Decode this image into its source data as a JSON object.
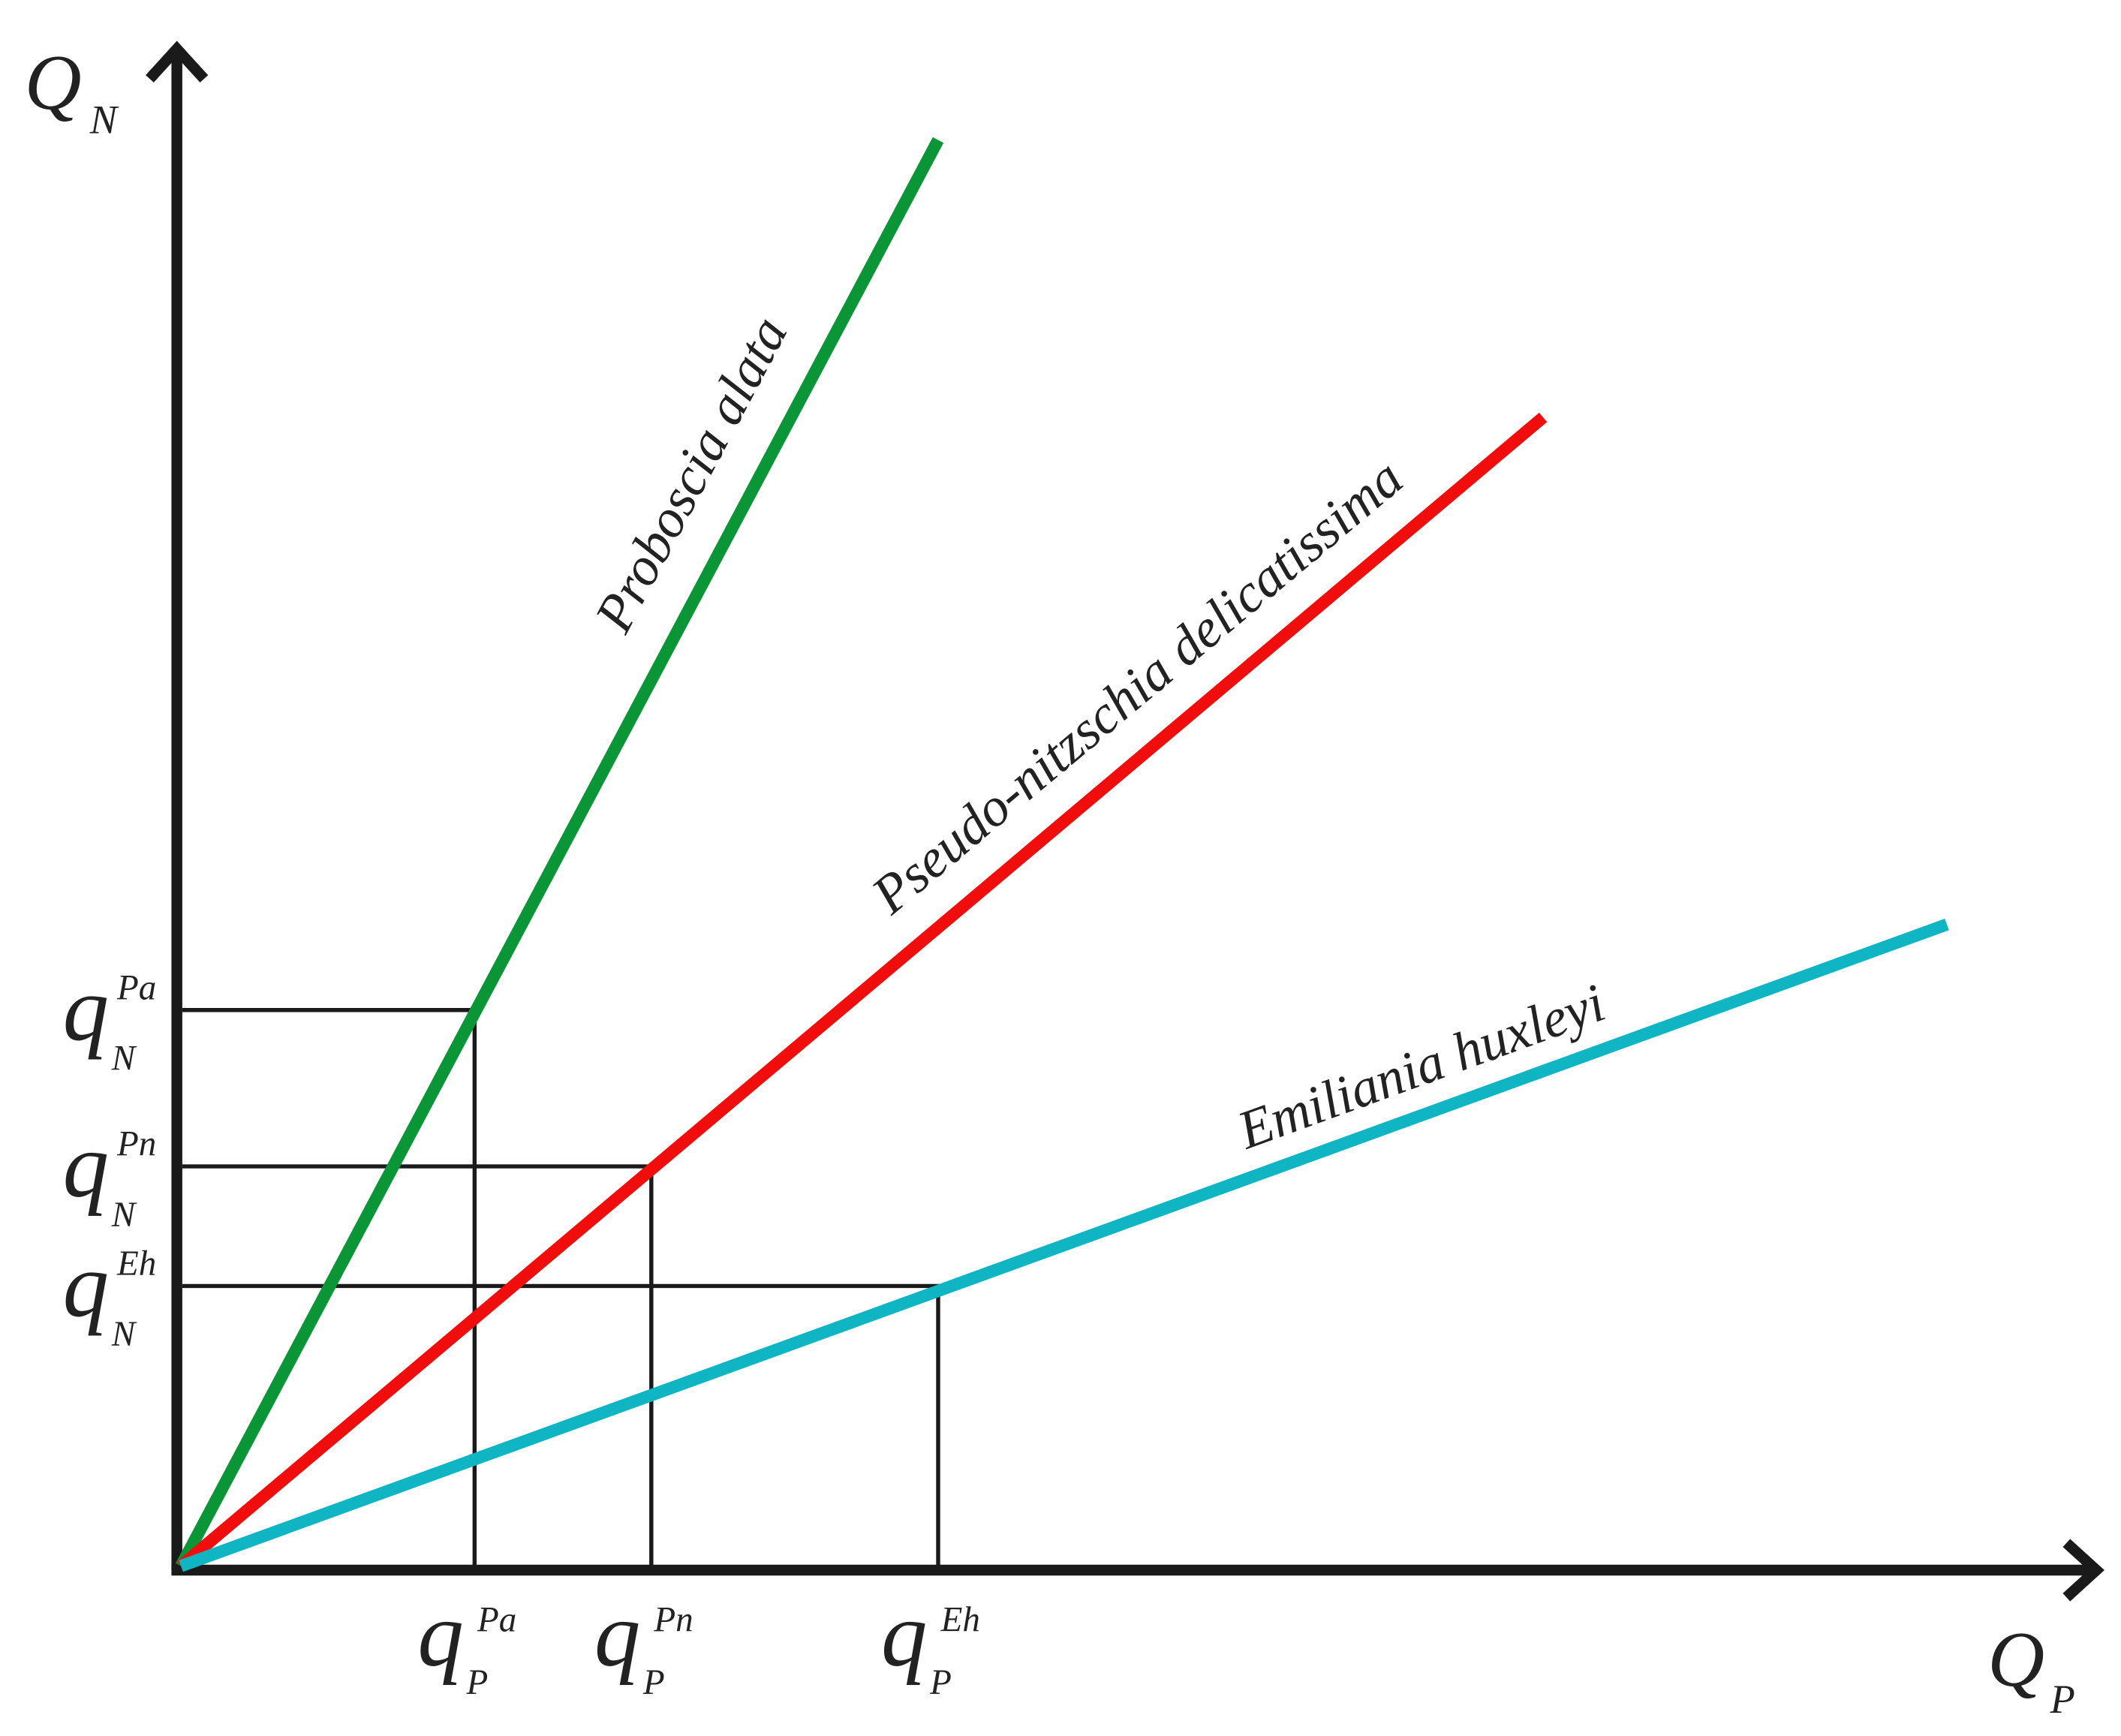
{
  "axes": {
    "y": {
      "symbol": "Q",
      "subscript": "N"
    },
    "x": {
      "symbol": "Q",
      "subscript": "P"
    }
  },
  "lines": [
    {
      "label": "Proboscia alata",
      "color": "#0a9637"
    },
    {
      "label": "Pseudo-nitzschia delicatissima",
      "color": "#f20d0d"
    },
    {
      "label": "Emiliania huxleyi",
      "color": "#0fb5c3"
    }
  ],
  "y_markers": [
    {
      "symbol": "q",
      "superscript": "Pa",
      "subscript": "N"
    },
    {
      "symbol": "q",
      "superscript": "Pn",
      "subscript": "N"
    },
    {
      "symbol": "q",
      "superscript": "Eh",
      "subscript": "N"
    }
  ],
  "x_markers": [
    {
      "symbol": "q",
      "superscript": "Pa",
      "subscript": "P"
    },
    {
      "symbol": "q",
      "superscript": "Pn",
      "subscript": "P"
    },
    {
      "symbol": "q",
      "superscript": "Eh",
      "subscript": "P"
    }
  ]
}
